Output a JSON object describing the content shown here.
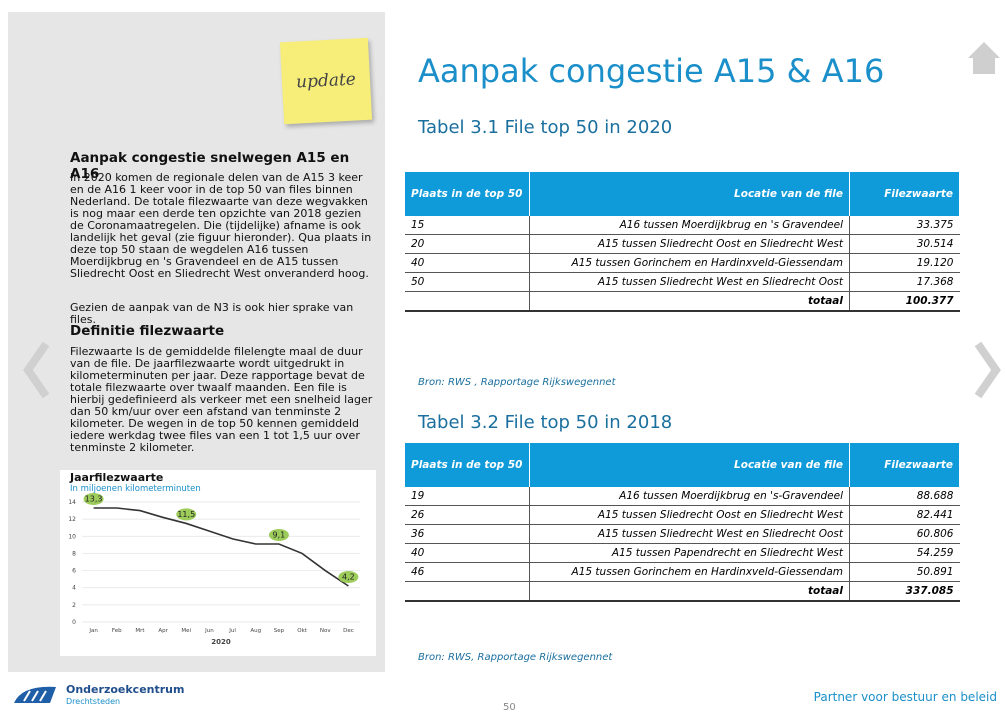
{
  "note": "update",
  "sidebar": {
    "heading": "Aanpak congestie snelwegen A15 en A16",
    "paragraphs": [
      "In 2020 komen de regionale delen van de A15 3 keer en de A16 1 keer voor in de top 50 van files binnen Nederland. De totale filezwaarte van deze wegvakken is nog maar een derde ten opzichte van 2018 gezien de Coronamaatregelen. Die (tijdelijke) afname is ook landelijk het geval (zie figuur hieronder). Qua plaats in deze top 50 staan de wegdelen A16 tussen Moerdijkbrug en 's Gravendeel en de A15 tussen Sliedrecht Oost en Sliedrecht West onveranderd hoog.",
      "Gezien de aanpak van de N3 is ook hier sprake van files."
    ],
    "definition_heading": "Definitie filezwaarte",
    "definition": "Filezwaarte Is de gemiddelde filelengte maal de duur van de file. De jaarfilezwaarte wordt uitgedrukt in kilometerminuten per jaar. Deze rapportage bevat de totale filezwaarte over twaalf maanden. Een file is hierbij gedefinieerd als verkeer met een snelheid lager dan 50 km/uur over een afstand van tenminste 2 kilometer. De wegen in de top 50 kennen gemiddeld iedere werkdag twee files van een 1 tot 1,5 uur over tenminste 2 kilometer."
  },
  "chart": {
    "type": "line",
    "title": "Jaarfilezwaarte",
    "subtitle": "In miljoenen kilometerminuten",
    "xlabel": "2020",
    "categories": [
      "Jan",
      "Feb",
      "Mrt",
      "Apr",
      "Mei",
      "Jun",
      "Jul",
      "Aug",
      "Sep",
      "Okt",
      "Nov",
      "Dec"
    ],
    "values": [
      13.3,
      13.3,
      13.0,
      12.2,
      11.5,
      10.6,
      9.7,
      9.1,
      9.1,
      8.0,
      6.0,
      4.2
    ],
    "value_labels": [
      "13,3",
      null,
      null,
      null,
      "11,5",
      null,
      null,
      null,
      "9,1",
      null,
      null,
      "4,2"
    ],
    "color": "#333333",
    "ylim": [
      0,
      14
    ],
    "yticks": [
      0,
      2,
      4,
      6,
      8,
      10,
      12,
      14
    ],
    "grid": true
  },
  "title": "Aanpak congestie A15 & A16",
  "tables": [
    {
      "caption": "Tabel 3.1 File top 50 in 2020",
      "header": [
        "Plaats in de top 50",
        "Locatie van de file",
        "Filezwaarte"
      ],
      "rows": [
        [
          "15",
          "A16 tussen Moerdijkbrug en 's Gravendeel",
          "33.375"
        ],
        [
          "20",
          "A15 tussen Sliedrecht Oost en Sliedrecht West",
          "30.514"
        ],
        [
          "40",
          "A15 tussen Gorinchem en Hardinxveld-Giessendam",
          "19.120"
        ],
        [
          "50",
          "A15 tussen Sliedrecht West en Sliedrecht Oost",
          "17.368"
        ]
      ],
      "total": [
        "totaal",
        "100.377"
      ],
      "source": "Bron: RWS , Rapportage Rijkswegennet"
    },
    {
      "caption": "Tabel 3.2 File top 50 in 2018",
      "header": [
        "Plaats in de top 50",
        "Locatie van de file",
        "Filezwaarte"
      ],
      "rows": [
        [
          "19",
          "A16 tussen Moerdijkbrug en 's-Gravendeel",
          "88.688"
        ],
        [
          "26",
          "A15 tussen Sliedrecht Oost en Sliedrecht West",
          "82.441"
        ],
        [
          "36",
          "A15 tussen Sliedrecht West en Sliedrecht Oost",
          "60.806"
        ],
        [
          "40",
          "A15 tussen Papendrecht en Sliedrecht West",
          "54.259"
        ],
        [
          "46",
          "A15 tussen Gorinchem en Hardinxveld-Giessendam",
          "50.891"
        ]
      ],
      "total": [
        "totaal",
        "337.085"
      ],
      "source": "Bron: RWS, Rapportage Rijkswegennet"
    }
  ],
  "footer": {
    "org": "Onderzoekcentrum",
    "org_sub": "Drechtsteden",
    "page": "50",
    "tagline": "Partner voor bestuur en beleid"
  }
}
